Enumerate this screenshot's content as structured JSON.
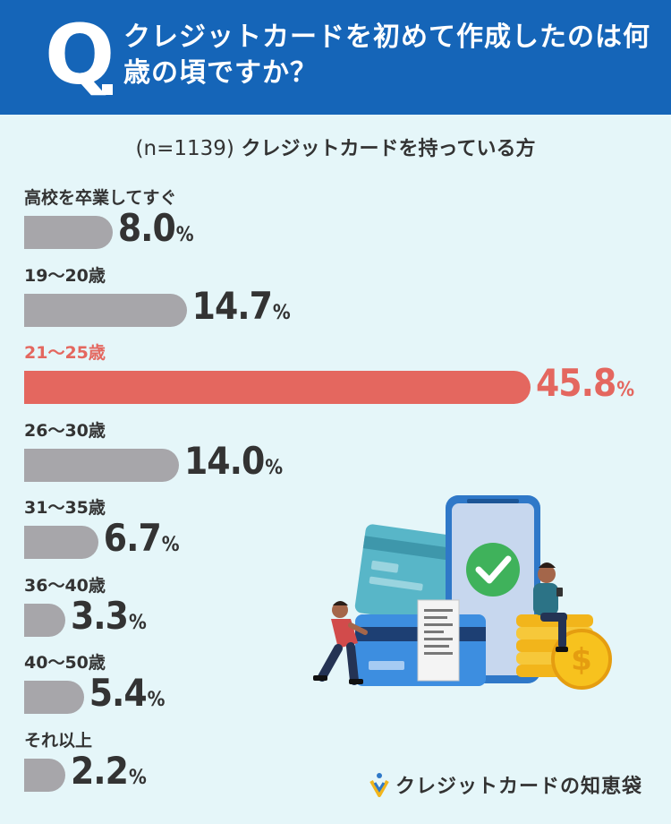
{
  "header": {
    "q_label": "Q",
    "question": "クレジットカードを初めて作成したのは何歳の頃ですか？"
  },
  "subtitle": {
    "sample": "(n=1139)",
    "group": "クレジットカードを持っている方"
  },
  "colors": {
    "header_bg": "#1565b8",
    "page_bg": "#e5f6f9",
    "bar_default": "#a7a6aa",
    "bar_highlight": "#e4675f"
  },
  "chart_data": {
    "type": "bar",
    "orientation": "horizontal",
    "unit": "%",
    "categories": [
      "高校を卒業してすぐ",
      "19〜20歳",
      "21〜25歳",
      "26〜30歳",
      "31〜35歳",
      "36〜40歳",
      "40〜50歳",
      "それ以上"
    ],
    "values": [
      8.0,
      14.7,
      45.8,
      14.0,
      6.7,
      3.3,
      5.4,
      2.2
    ],
    "value_labels": [
      "8.0",
      "14.7",
      "45.8",
      "14.0",
      "6.7",
      "3.3",
      "5.4",
      "2.2"
    ],
    "highlight_index": 2,
    "percent_sign": "%"
  },
  "logo": {
    "icon": "card-logo-icon",
    "text": "クレジットカードの知恵袋"
  },
  "illustration": {
    "icons": [
      "smartphone-icon",
      "checkmark-icon",
      "credit-card-icon",
      "receipt-icon",
      "coin-stack-icon",
      "dollar-coin-icon",
      "person-pushing-icon",
      "person-sitting-icon"
    ]
  }
}
